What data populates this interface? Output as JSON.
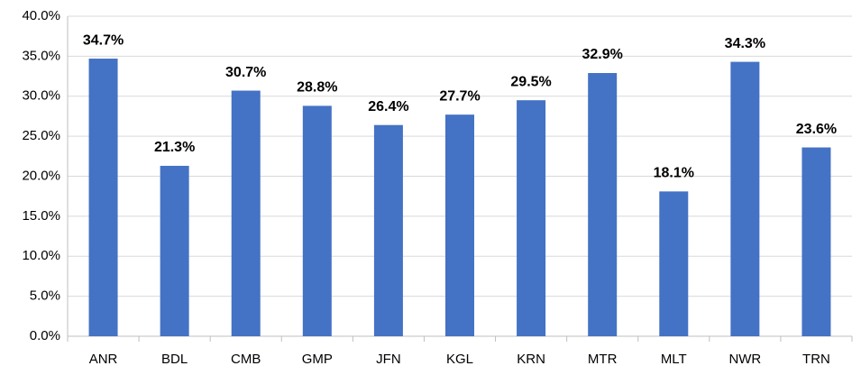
{
  "chart_data": {
    "type": "bar",
    "categories": [
      "ANR",
      "BDL",
      "CMB",
      "GMP",
      "JFN",
      "KGL",
      "KRN",
      "MTR",
      "MLT",
      "NWR",
      "TRN"
    ],
    "values": [
      34.7,
      21.3,
      30.7,
      28.8,
      26.4,
      27.7,
      29.5,
      32.9,
      18.1,
      34.3,
      23.6
    ],
    "value_labels": [
      "34.7%",
      "21.3%",
      "30.7%",
      "28.8%",
      "26.4%",
      "27.7%",
      "29.5%",
      "32.9%",
      "18.1%",
      "34.3%",
      "23.6%"
    ],
    "color": "#4472c4",
    "ylim": [
      0,
      40
    ],
    "yticks": [
      {
        "value": 0,
        "label": "0.0%"
      },
      {
        "value": 5,
        "label": "5.0%"
      },
      {
        "value": 10,
        "label": "10.0%"
      },
      {
        "value": 15,
        "label": "15.0%"
      },
      {
        "value": 20,
        "label": "20.0%"
      },
      {
        "value": 25,
        "label": "25.0%"
      },
      {
        "value": 30,
        "label": "30.0%"
      },
      {
        "value": 35,
        "label": "35.0%"
      },
      {
        "value": 40,
        "label": "40.0%"
      }
    ],
    "grid": true
  }
}
